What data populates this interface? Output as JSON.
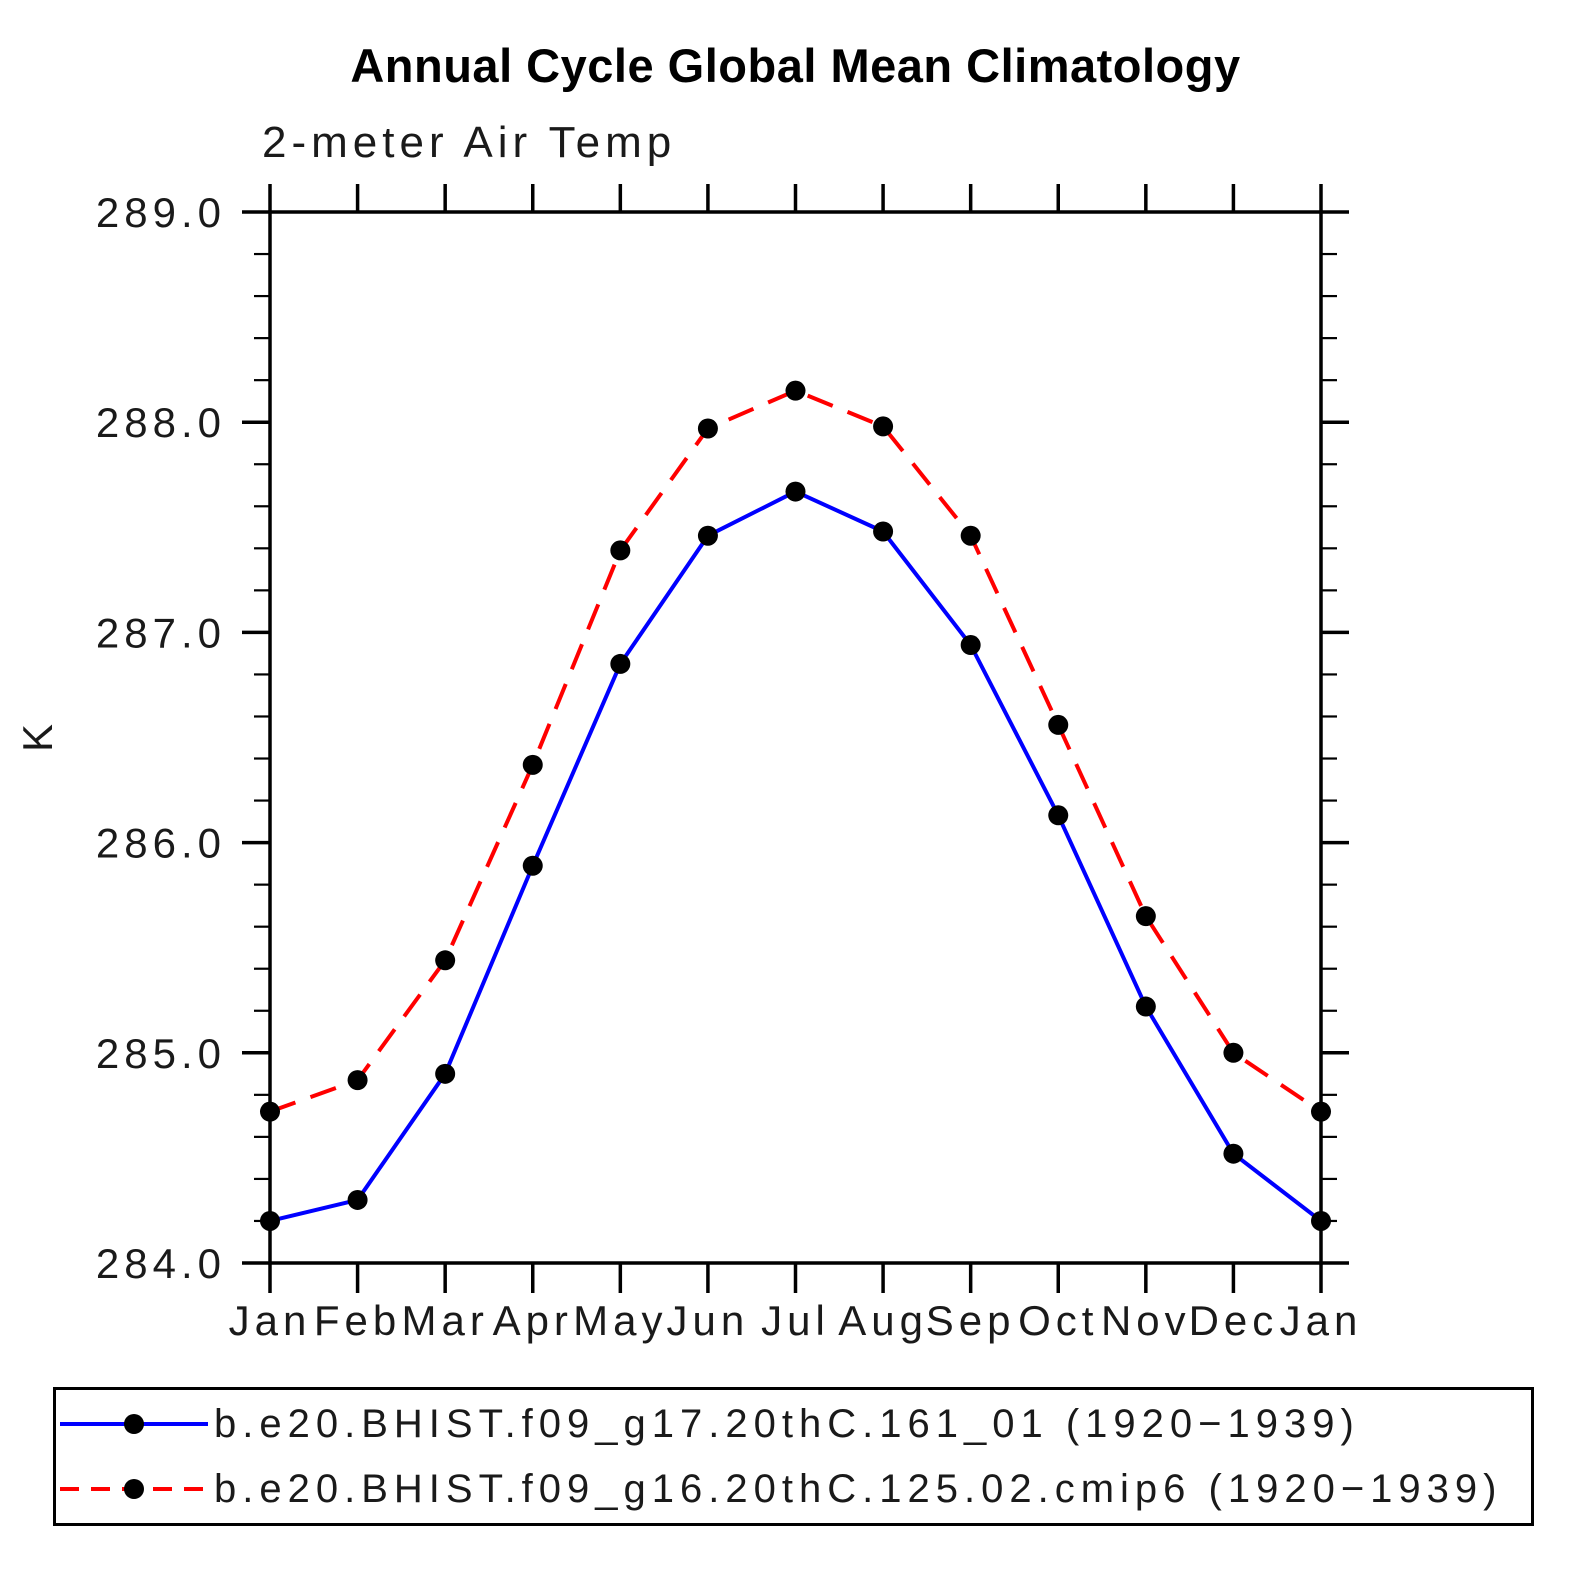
{
  "chart_data": {
    "type": "line",
    "title": "Annual Cycle Global Mean Climatology",
    "subtitle": "2-meter Air Temp",
    "ylabel": "K",
    "categories": [
      "Jan",
      "Feb",
      "Mar",
      "Apr",
      "May",
      "Jun",
      "Jul",
      "Aug",
      "Sep",
      "Oct",
      "Nov",
      "Dec",
      "Jan"
    ],
    "ylim": [
      284.0,
      289.0
    ],
    "ytick_interval": 1.0,
    "ytick_minor_interval": 0.2,
    "ytick_labels": [
      "284.0",
      "285.0",
      "286.0",
      "287.0",
      "288.0",
      "289.0"
    ],
    "grid": false,
    "legend_position": "bottom",
    "frame_color": "#000000",
    "series": [
      {
        "name": "b.e20.BHIST.f09_g17.20thC.161_01 (1920−1939)",
        "line_style": "solid",
        "color": "#0000ff",
        "marker": "filled-circle",
        "marker_color": "#000000",
        "values": [
          284.2,
          284.3,
          284.9,
          285.89,
          286.85,
          287.46,
          287.67,
          287.48,
          286.94,
          286.13,
          285.22,
          284.52,
          284.2
        ]
      },
      {
        "name": "b.e20.BHIST.f09_g16.20thC.125.02.cmip6 (1920−1939)",
        "line_style": "dashed",
        "color": "#ff0000",
        "marker": "filled-circle",
        "marker_color": "#000000",
        "values": [
          284.72,
          284.87,
          285.44,
          286.37,
          287.39,
          287.97,
          288.15,
          287.98,
          287.46,
          286.56,
          285.65,
          285.0,
          284.72
        ]
      }
    ]
  }
}
